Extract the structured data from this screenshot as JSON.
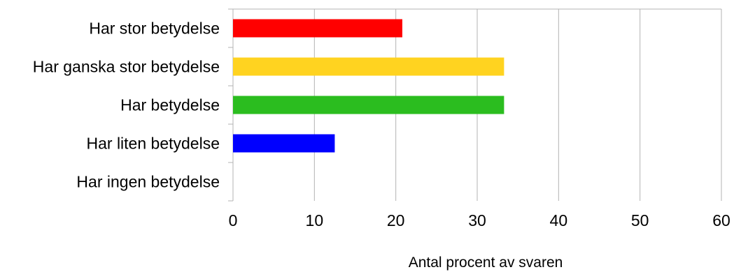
{
  "chart_data": {
    "type": "bar",
    "orientation": "horizontal",
    "categories": [
      "Har stor betydelse",
      "Har ganska stor betydelse",
      "Har betydelse",
      "Har liten betydelse",
      "Har ingen betydelse"
    ],
    "values": [
      20.8,
      33.3,
      33.3,
      12.5,
      0
    ],
    "colors": [
      "#ff0000",
      "#ffd320",
      "#2bbd1f",
      "#0000ff",
      "#ff8c00"
    ],
    "xlabel": "Antal procent av svaren",
    "ylabel": "",
    "title": "",
    "xlim": [
      0,
      60
    ],
    "xticks": [
      "0",
      "10",
      "20",
      "30",
      "40",
      "50",
      "60"
    ],
    "grid": true,
    "legend": "none"
  }
}
